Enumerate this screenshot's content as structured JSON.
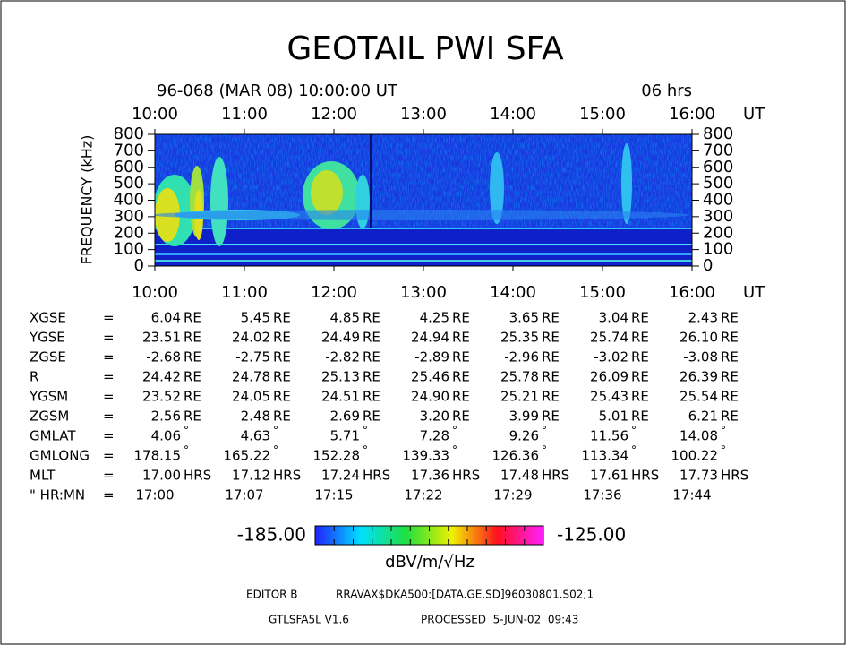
{
  "chart_data": {
    "type": "spectrogram",
    "title": "GEOTAIL PWI SFA",
    "subtitle": "96-068 (MAR 08) 10:00:00 UT",
    "duration": "06 hrs",
    "x_unit": "UT",
    "categories": [
      "10:00",
      "11:00",
      "12:00",
      "13:00",
      "14:00",
      "15:00",
      "16:00"
    ],
    "y_label": "FREQUENCY (kHz)",
    "ylim": [
      0,
      800
    ],
    "yticks": [
      0,
      100,
      200,
      300,
      400,
      500,
      600,
      700,
      800
    ],
    "colorbar": {
      "min": {
        "value": -185,
        "label": "-185.00"
      },
      "max": {
        "value": -125,
        "label": "-125.00"
      },
      "unit": "dBV/m/√Hz"
    }
  },
  "ephemeris": {
    "separator": "=",
    "rows": [
      {
        "label": "XGSE",
        "values": [
          "6.04",
          "5.45",
          "4.85",
          "4.25",
          "3.65",
          "3.04",
          "2.43"
        ],
        "unit": "RE"
      },
      {
        "label": "YGSE",
        "values": [
          "23.51",
          "24.02",
          "24.49",
          "24.94",
          "25.35",
          "25.74",
          "26.10"
        ],
        "unit": "RE"
      },
      {
        "label": "ZGSE",
        "values": [
          "-2.68",
          "-2.75",
          "-2.82",
          "-2.89",
          "-2.96",
          "-3.02",
          "-3.08"
        ],
        "unit": "RE"
      },
      {
        "label": "R",
        "values": [
          "24.42",
          "24.78",
          "25.13",
          "25.46",
          "25.78",
          "26.09",
          "26.39"
        ],
        "unit": "RE"
      },
      {
        "label": "YGSM",
        "values": [
          "23.52",
          "24.05",
          "24.51",
          "24.90",
          "25.21",
          "25.43",
          "25.54"
        ],
        "unit": "RE"
      },
      {
        "label": "ZGSM",
        "values": [
          "2.56",
          "2.48",
          "2.69",
          "3.20",
          "3.99",
          "5.01",
          "6.21"
        ],
        "unit": "RE"
      },
      {
        "label": "GMLAT",
        "values": [
          "4.06",
          "4.63",
          "5.71",
          "7.28",
          "9.26",
          "11.56",
          "14.08"
        ],
        "unit": "°"
      },
      {
        "label": "GMLONG",
        "values": [
          "178.15",
          "165.22",
          "152.28",
          "139.33",
          "126.36",
          "113.34",
          "100.22"
        ],
        "unit": "°"
      },
      {
        "label": "MLT",
        "values": [
          "17.00",
          "17.12",
          "17.24",
          "17.36",
          "17.48",
          "17.61",
          "17.73"
        ],
        "unit": "HRS"
      },
      {
        "label": "\" HR:MN",
        "values": [
          "17:00",
          "17:07",
          "17:15",
          "17:22",
          "17:29",
          "17:36",
          "17:44"
        ]
      }
    ]
  },
  "footer": {
    "editor": "EDITOR B",
    "file": "RRAVAX$DKA500:[DATA.GE.SD]96030801.S02;1",
    "version": "GTLSFA5L V1.6",
    "processed": "PROCESSED  5-JUN-02  09:43"
  }
}
